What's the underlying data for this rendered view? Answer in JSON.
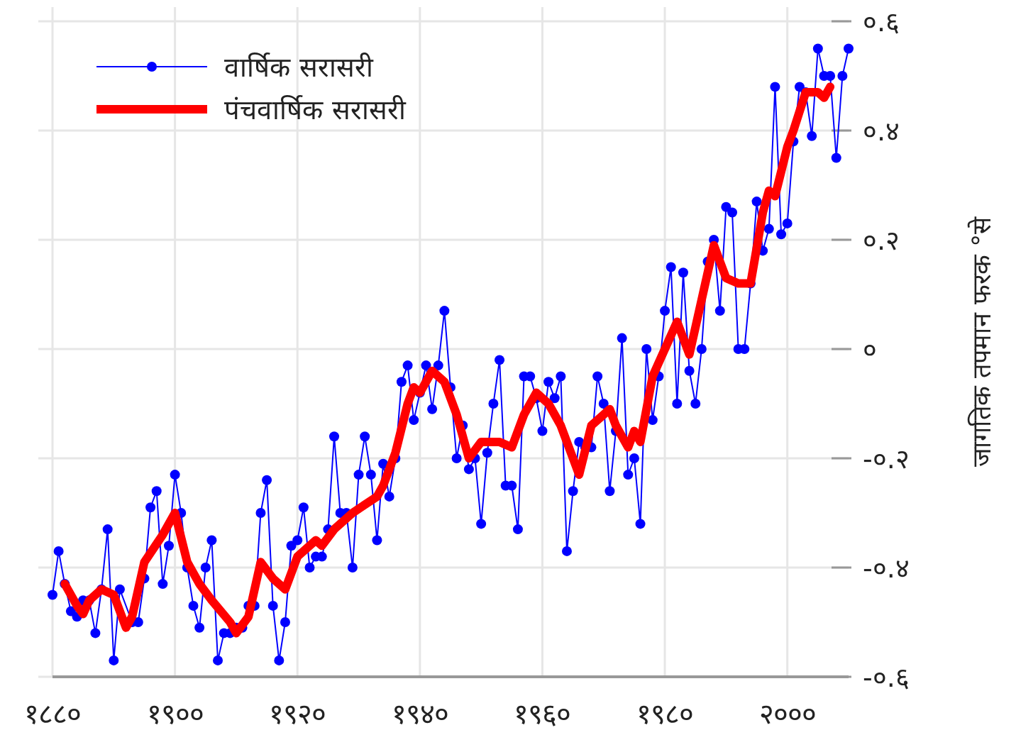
{
  "chart_data": {
    "type": "line",
    "ylabel": "जागतिक तपमान फरक °से",
    "xlim": [
      1880,
      2010
    ],
    "xticks": [
      {
        "value": 1880,
        "label": "१८८०"
      },
      {
        "value": 1900,
        "label": "१९००"
      },
      {
        "value": 1920,
        "label": "१९२०"
      },
      {
        "value": 1940,
        "label": "१९४०"
      },
      {
        "value": 1960,
        "label": "१९६०"
      },
      {
        "value": 1980,
        "label": "१९८०"
      },
      {
        "value": 2000,
        "label": "२०००"
      }
    ],
    "ylim": [
      -0.6,
      0.6
    ],
    "yticks": [
      {
        "value": -0.6,
        "label": "-०.६"
      },
      {
        "value": -0.4,
        "label": "-०.४"
      },
      {
        "value": -0.2,
        "label": "-०.२"
      },
      {
        "value": 0,
        "label": "०"
      },
      {
        "value": 0.2,
        "label": "०.२"
      },
      {
        "value": 0.4,
        "label": "०.४"
      },
      {
        "value": 0.6,
        "label": "०.६"
      }
    ],
    "grid": true,
    "legend": "top left",
    "series": [
      {
        "name": "वार्षिक सरासरी",
        "color": "#0000ff",
        "marker": "circle",
        "line_style": "solid",
        "x": [
          1880,
          1881,
          1882,
          1883,
          1884,
          1885,
          1886,
          1887,
          1888,
          1889,
          1890,
          1891,
          1893,
          1894,
          1895,
          1896,
          1897,
          1898,
          1899,
          1900,
          1901,
          1902,
          1903,
          1904,
          1905,
          1906,
          1907,
          1908,
          1909,
          1910,
          1911,
          1912,
          1913,
          1914,
          1915,
          1916,
          1917,
          1918,
          1919,
          1920,
          1921,
          1922,
          1923,
          1924,
          1925,
          1926,
          1927,
          1928,
          1929,
          1930,
          1931,
          1932,
          1933,
          1934,
          1935,
          1936,
          1937,
          1938,
          1939,
          1940,
          1941,
          1942,
          1943,
          1944,
          1945,
          1946,
          1947,
          1948,
          1949,
          1950,
          1951,
          1952,
          1953,
          1954,
          1955,
          1956,
          1957,
          1958,
          1959,
          1960,
          1961,
          1962,
          1963,
          1964,
          1965,
          1966,
          1967,
          1968,
          1969,
          1970,
          1971,
          1972,
          1973,
          1974,
          1975,
          1976,
          1977,
          1978,
          1979,
          1980,
          1981,
          1982,
          1983,
          1984,
          1985,
          1986,
          1987,
          1988,
          1989,
          1990,
          1991,
          1992,
          1993,
          1994,
          1995,
          1996,
          1997,
          1998,
          1999,
          2000,
          2001,
          2002,
          2003,
          2004,
          2005,
          2006,
          2007,
          2008,
          2009,
          2010
        ],
        "values": [
          -0.45,
          -0.37,
          -0.43,
          -0.48,
          -0.49,
          -0.46,
          -0.46,
          -0.52,
          -0.44,
          -0.33,
          -0.57,
          -0.44,
          -0.5,
          -0.5,
          -0.42,
          -0.29,
          -0.26,
          -0.43,
          -0.36,
          -0.23,
          -0.3,
          -0.4,
          -0.47,
          -0.51,
          -0.4,
          -0.35,
          -0.57,
          -0.52,
          -0.52,
          -0.51,
          -0.51,
          -0.47,
          -0.47,
          -0.3,
          -0.24,
          -0.47,
          -0.57,
          -0.5,
          -0.36,
          -0.35,
          -0.29,
          -0.4,
          -0.38,
          -0.38,
          -0.33,
          -0.16,
          -0.3,
          -0.3,
          -0.4,
          -0.23,
          -0.16,
          -0.23,
          -0.35,
          -0.21,
          -0.27,
          -0.2,
          -0.06,
          -0.03,
          -0.13,
          -0.08,
          -0.03,
          -0.11,
          -0.03,
          0.07,
          -0.07,
          -0.2,
          -0.14,
          -0.22,
          -0.2,
          -0.32,
          -0.19,
          -0.1,
          -0.02,
          -0.25,
          -0.25,
          -0.33,
          -0.05,
          -0.05,
          -0.09,
          -0.15,
          -0.06,
          -0.09,
          -0.05,
          -0.37,
          -0.26,
          -0.17,
          -0.18,
          -0.18,
          -0.05,
          -0.1,
          -0.26,
          -0.15,
          0.02,
          -0.23,
          -0.2,
          -0.32,
          0.0,
          -0.13,
          -0.05,
          0.07,
          0.15,
          -0.1,
          0.14,
          -0.04,
          -0.1,
          0.0,
          0.16,
          0.2,
          0.07,
          0.26,
          0.25,
          0.0,
          0.0,
          0.12,
          0.27,
          0.18,
          0.22,
          0.48,
          0.21,
          0.23,
          0.38,
          0.48,
          0.47,
          0.39,
          0.55,
          0.5,
          0.5,
          0.35,
          0.5,
          0.55
        ]
      },
      {
        "name": "पंचवार्षिक सरासरी",
        "color": "#ff0000",
        "marker": "none",
        "line_style": "solid",
        "x": [
          1882,
          1884,
          1885,
          1886,
          1888,
          1890,
          1892,
          1893,
          1895,
          1898,
          1900,
          1902,
          1904,
          1906,
          1909,
          1910,
          1912,
          1914,
          1916,
          1918,
          1920,
          1923,
          1924,
          1926,
          1929,
          1933,
          1934,
          1936,
          1938,
          1939,
          1940,
          1942,
          1944,
          1946,
          1948,
          1950,
          1953,
          1955,
          1957,
          1959,
          1961,
          1963,
          1965,
          1966,
          1968,
          1970,
          1971,
          1972,
          1974,
          1975,
          1976,
          1978,
          1980,
          1982,
          1984,
          1986,
          1988,
          1990,
          1992,
          1994,
          1996,
          1997,
          1998,
          2000,
          2001,
          2003,
          2005,
          2006,
          2007
        ],
        "values": [
          -0.43,
          -0.47,
          -0.485,
          -0.46,
          -0.44,
          -0.45,
          -0.51,
          -0.49,
          -0.39,
          -0.34,
          -0.3,
          -0.39,
          -0.43,
          -0.46,
          -0.5,
          -0.52,
          -0.49,
          -0.39,
          -0.42,
          -0.44,
          -0.38,
          -0.35,
          -0.36,
          -0.33,
          -0.3,
          -0.27,
          -0.25,
          -0.19,
          -0.1,
          -0.07,
          -0.08,
          -0.04,
          -0.06,
          -0.12,
          -0.2,
          -0.17,
          -0.17,
          -0.18,
          -0.12,
          -0.08,
          -0.1,
          -0.14,
          -0.2,
          -0.23,
          -0.14,
          -0.12,
          -0.11,
          -0.14,
          -0.18,
          -0.15,
          -0.17,
          -0.05,
          0.0,
          0.05,
          -0.01,
          0.09,
          0.19,
          0.13,
          0.12,
          0.12,
          0.25,
          0.29,
          0.28,
          0.37,
          0.4,
          0.47,
          0.47,
          0.46,
          0.48
        ]
      }
    ]
  }
}
